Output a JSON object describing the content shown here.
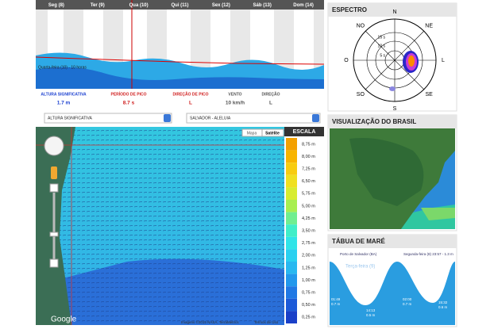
{
  "forecast": {
    "days": [
      "Seg (8)",
      "Ter (9)",
      "Qua (10)",
      "Qui (11)",
      "Sex (12)",
      "Sáb (13)",
      "Dom (14)"
    ],
    "caption": "Quarta-feira (10) - 10 horas",
    "labels": [
      "ALTURA SIGNIFICATIVA",
      "PERÍODO DE PICO",
      "DIREÇÃO DE PICO",
      "VENTO",
      "DIREÇÃO"
    ],
    "values": [
      "1.7 m",
      "8.7 s",
      "L",
      "10 km/h",
      "L"
    ]
  },
  "spectrum": {
    "title": "ESPECTRO",
    "directions": [
      "N",
      "NE",
      "L",
      "SE",
      "S",
      "SO",
      "O",
      "NO"
    ],
    "rings": [
      "15 s",
      "10 s",
      "5 s"
    ]
  },
  "controls": {
    "variable": "ALTURA SIGNIFICATIVA",
    "location": "SALVADOR - ALELUIA",
    "map_buttons": [
      "Mapa",
      "Satélite"
    ]
  },
  "scale": {
    "title": "ESCALA",
    "labels": [
      "8,75 m",
      "8,00 m",
      "7,25 m",
      "6,50 m",
      "5,75 m",
      "5,00 m",
      "4,25 m",
      "3,50 m",
      "2,75 m",
      "2,00 m",
      "1,25 m",
      "1,00 m",
      "0,75 m",
      "0,50 m",
      "0,25 m"
    ]
  },
  "map": {
    "logo": "Google",
    "credits": "Imagens ©2015 NASA, TerraMetrics",
    "terms": "Termos de Uso"
  },
  "brazil": {
    "title": "VISUALIZAÇÃO DO BRASIL"
  },
  "tide": {
    "title": "TÁBUA DE MARÉ",
    "port": "Porto de Salvador (BA)",
    "current": "Segunda-feira (8) 23:57 - 1.3 m",
    "day": "Terça-feira (9)",
    "events": [
      {
        "time": "01:49",
        "height": "0.7 m"
      },
      {
        "time": "14:13",
        "height": "0.5 m"
      },
      {
        "time": "02:00",
        "height": "0.7 m"
      },
      {
        "time": "15:32",
        "height": "0.6 m"
      }
    ]
  }
}
